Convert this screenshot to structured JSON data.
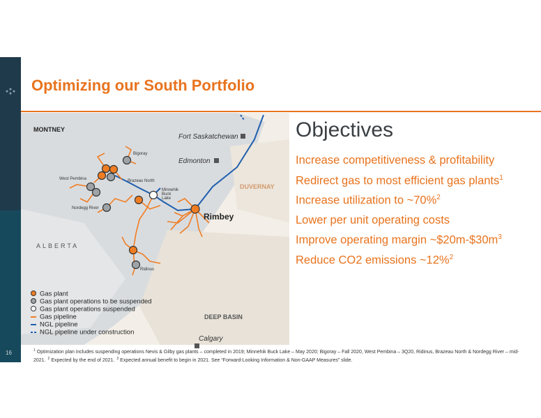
{
  "header": {
    "title": "Optimizing our South Portfolio",
    "page_number": "16"
  },
  "map": {
    "labels": [
      "MONTNEY",
      "Fort Saskatchewan",
      "Edmonton",
      "DUVERNAY",
      "Rimbey",
      "ALBERTA",
      "DEEP BASIN",
      "Calgary",
      "Bigoray",
      "Brazeau North",
      "West Pembina",
      "Minnehik",
      "Buck",
      "Lake",
      "Nordegg River",
      "Ridinus"
    ]
  },
  "legend": [
    "Gas plant",
    "Gas plant operations to be suspended",
    "Gas plant operations suspended",
    "Gas pipeline",
    "NGL pipeline",
    "NGL pipeline under construction"
  ],
  "objectives": {
    "title": "Objectives",
    "items": [
      {
        "text": "Increase competitiveness & profitability"
      },
      {
        "text": "Redirect gas to most efficient gas plants",
        "sup": "1"
      },
      {
        "text": "Increase utilization to ~70%",
        "sup": "2"
      },
      {
        "text": "Lower per unit operating costs"
      },
      {
        "text": "Improve operating margin ~$20m-$30m",
        "sup": "3"
      },
      {
        "text": "Reduce CO2 emissions ~12%",
        "sup": "2"
      }
    ]
  },
  "footnote": [
    {
      "sup": "1",
      "text": "Optimization plan includes suspending operations Nevis & Gilby gas plants – completed in 2019; Minnehik Buck Lake – May 2020; Bigoray – Fall 2020, West Pembina – 3Q20, Ridinus, Brazeau North & Nordegg River – mid-2021."
    },
    {
      "sup": "2",
      "text": "Expected by the end of 2021."
    },
    {
      "sup": "3",
      "text": "Expected annual benefit to begin in 2021.   See “Forward-Looking Information & Non-GAAP Measures” slide."
    }
  ]
}
